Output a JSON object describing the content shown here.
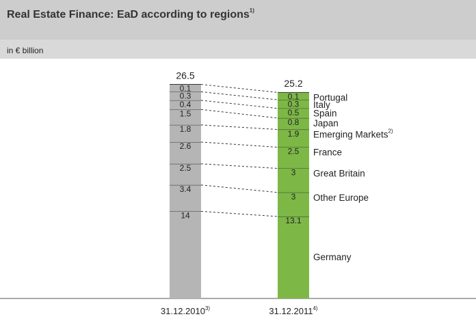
{
  "chart_data": {
    "type": "stacked_bar",
    "title": "Real Estate Finance: EaD according to regions",
    "title_note": "1)",
    "subtitle": "in € billion",
    "categories": [
      "31.12.2010",
      "31.12.2011"
    ],
    "category_notes": [
      "3)",
      "4)"
    ],
    "colors": [
      "#b5b5b5",
      "#7db847"
    ],
    "totals": [
      26.5,
      25.2
    ],
    "series": [
      {
        "name": "Portugal",
        "values": [
          0.1,
          0.1
        ]
      },
      {
        "name": "Italy",
        "values": [
          0.3,
          0.3
        ]
      },
      {
        "name": "Spain",
        "values": [
          0.4,
          0.5
        ]
      },
      {
        "name": "Japan",
        "values": [
          1.5,
          0.8
        ]
      },
      {
        "name": "Emerging Markets",
        "note": "2)",
        "values": [
          1.8,
          1.9
        ]
      },
      {
        "name": "France",
        "values": [
          2.6,
          2.5
        ]
      },
      {
        "name": "Great Britain",
        "values": [
          2.5,
          3.0
        ]
      },
      {
        "name": "Other Europe",
        "values": [
          3.4,
          3.0
        ]
      },
      {
        "name": "Germany",
        "values": [
          14.0,
          13.1
        ]
      }
    ]
  }
}
